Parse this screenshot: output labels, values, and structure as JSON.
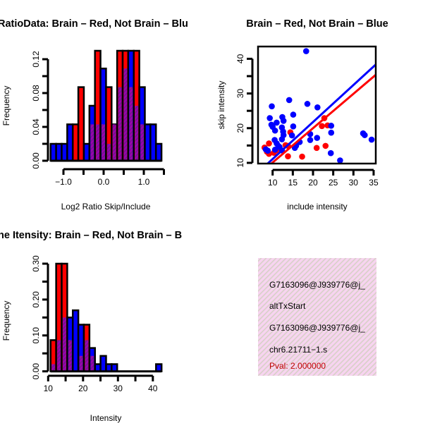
{
  "colors": {
    "red": "#ff0000",
    "blue": "#0000ff",
    "purple": "#9a00b0",
    "pval": "#c00000",
    "panel_bg": "#f6d6f0"
  },
  "chart_data": [
    {
      "type": "bar",
      "title": "RatioData: Brain – Red, Not Brain – Blu",
      "xlabel": "Log2 Ratio Skip/Include",
      "ylabel": "Frequency",
      "bin_start": -1.32,
      "bin_width": 0.138,
      "series": [
        {
          "name": "Brain",
          "color": "red",
          "values": [
            0,
            0,
            0,
            0,
            0.043,
            0.087,
            0,
            0.043,
            0.13,
            0.043,
            0.087,
            0.043,
            0.13,
            0.13,
            0.087,
            0.13,
            0.043,
            0,
            0,
            0
          ]
        },
        {
          "name": "Not Brain",
          "color": "blue",
          "values": [
            0.02,
            0.02,
            0.02,
            0.043,
            0,
            0,
            0.02,
            0.065,
            0.043,
            0.109,
            0.02,
            0.043,
            0.087,
            0.109,
            0.13,
            0.065,
            0.087,
            0.043,
            0.043,
            0.02
          ]
        }
      ],
      "xticks": [
        -1.0,
        -0.5,
        0.0,
        0.5,
        1.0,
        1.5
      ],
      "xticklabels": [
        "−1.0",
        "",
        "0.0",
        "",
        "1.0",
        ""
      ],
      "yticks": [
        0,
        0.02,
        0.04,
        0.06,
        0.08,
        0.1,
        0.12
      ],
      "yticklabels": [
        "0.00",
        "",
        "0.04",
        "",
        "0.08",
        "",
        "0.12"
      ],
      "xlim": [
        -1.0,
        1.5
      ],
      "ylim": [
        0,
        0.12
      ]
    },
    {
      "type": "scatter",
      "title": "Brain – Red, Not Brain – Blue",
      "xlabel": "include intensity",
      "ylabel": "skip intensity",
      "xlim": [
        6.5,
        35.5
      ],
      "ylim": [
        9.5,
        44
      ],
      "xticks": [
        10,
        15,
        20,
        25,
        30,
        35
      ],
      "xticklabels": [
        "10",
        "15",
        "20",
        "25",
        "30",
        "35"
      ],
      "yticks": [
        10,
        15,
        20,
        25,
        30,
        35,
        40
      ],
      "yticklabels": [
        "10",
        "",
        "20",
        "",
        "30",
        "",
        "40"
      ],
      "series": [
        {
          "name": "Not Brain",
          "color": "blue",
          "points": [
            [
              18.3,
              42.2
            ],
            [
              9.8,
              26.3
            ],
            [
              18.6,
              27.0
            ],
            [
              14.1,
              28.1
            ],
            [
              21.1,
              26.0
            ],
            [
              15.1,
              23.9
            ],
            [
              9.3,
              22.9
            ],
            [
              12.4,
              23.2
            ],
            [
              11.0,
              21.6
            ],
            [
              12.7,
              22.1
            ],
            [
              9.7,
              21.0
            ],
            [
              10.0,
              20.4
            ],
            [
              10.6,
              19.3
            ],
            [
              12.3,
              20.2
            ],
            [
              12.6,
              19.0
            ],
            [
              12.7,
              18.0
            ],
            [
              15.1,
              20.5
            ],
            [
              14.8,
              17.9
            ],
            [
              12.3,
              16.8
            ],
            [
              10.5,
              16.6
            ],
            [
              11.0,
              15.6
            ],
            [
              11.4,
              14.9
            ],
            [
              8.3,
              13.9
            ],
            [
              8.8,
              13.5
            ],
            [
              10.6,
              13.8
            ],
            [
              12.3,
              13.6
            ],
            [
              15.5,
              14.3
            ],
            [
              15.8,
              14.9
            ],
            [
              16.7,
              16.0
            ],
            [
              19.3,
              18.3
            ],
            [
              19.3,
              16.6
            ],
            [
              21.0,
              17.2
            ],
            [
              24.5,
              20.7
            ],
            [
              24.5,
              18.7
            ],
            [
              24.4,
              12.8
            ],
            [
              26.7,
              10.7
            ],
            [
              32.4,
              18.5
            ],
            [
              32.8,
              18.0
            ],
            [
              34.5,
              16.7
            ],
            [
              11.7,
              14.6
            ]
          ],
          "fit": {
            "slope": 1.067,
            "intercept": 0.43
          }
        },
        {
          "name": "Brain",
          "color": "red",
          "points": [
            [
              8.0,
              14.4
            ],
            [
              8.6,
              13.2
            ],
            [
              9.1,
              12.6
            ],
            [
              9.1,
              15.6
            ],
            [
              10.3,
              12.9
            ],
            [
              10.9,
              13.6
            ],
            [
              13.2,
              15.1
            ],
            [
              13.8,
              11.9
            ],
            [
              14.4,
              18.8
            ],
            [
              17.3,
              11.8
            ],
            [
              20.9,
              14.3
            ],
            [
              22.8,
              22.9
            ],
            [
              22.2,
              20.6
            ],
            [
              23.6,
              20.8
            ],
            [
              23.1,
              14.9
            ],
            [
              13.8,
              14.9
            ]
          ],
          "fit": {
            "slope": 0.99,
            "intercept": 0.2
          }
        }
      ]
    },
    {
      "type": "bar",
      "title": "ne Itensity: Brain – Red, Not Brain – B",
      "xlabel": "Intensity",
      "ylabel": "Frequency",
      "bin_start": 10.7,
      "bin_width": 1.59,
      "series": [
        {
          "name": "Brain",
          "color": "red",
          "values": [
            0.087,
            0.3,
            0.3,
            0.087,
            0,
            0.043,
            0.13,
            0.043,
            0,
            0,
            0,
            0,
            0,
            0,
            0,
            0,
            0,
            0,
            0,
            0
          ]
        },
        {
          "name": "Not Brain",
          "color": "blue",
          "values": [
            0.02,
            0.087,
            0.15,
            0.15,
            0.17,
            0.13,
            0.087,
            0.065,
            0.02,
            0.043,
            0.02,
            0.02,
            0,
            0,
            0,
            0,
            0,
            0,
            0,
            0.02
          ]
        }
      ],
      "xticks": [
        10,
        15,
        20,
        25,
        30,
        35,
        40
      ],
      "xticklabels": [
        "10",
        "",
        "20",
        "",
        "30",
        "",
        "40"
      ],
      "yticks": [
        0,
        0.05,
        0.1,
        0.15,
        0.2,
        0.25,
        0.3
      ],
      "yticklabels": [
        "0.00",
        "",
        "0.10",
        "",
        "0.20",
        "",
        "0.30"
      ],
      "xlim": [
        10,
        40
      ],
      "ylim": [
        0,
        0.3
      ]
    }
  ],
  "info": {
    "lines": [
      "G7163096@J939776@j_",
      "altTxStart",
      "G7163096@J939776@j_",
      "chr6.21711−1.s"
    ],
    "pval": "Pval: 2.000000"
  }
}
